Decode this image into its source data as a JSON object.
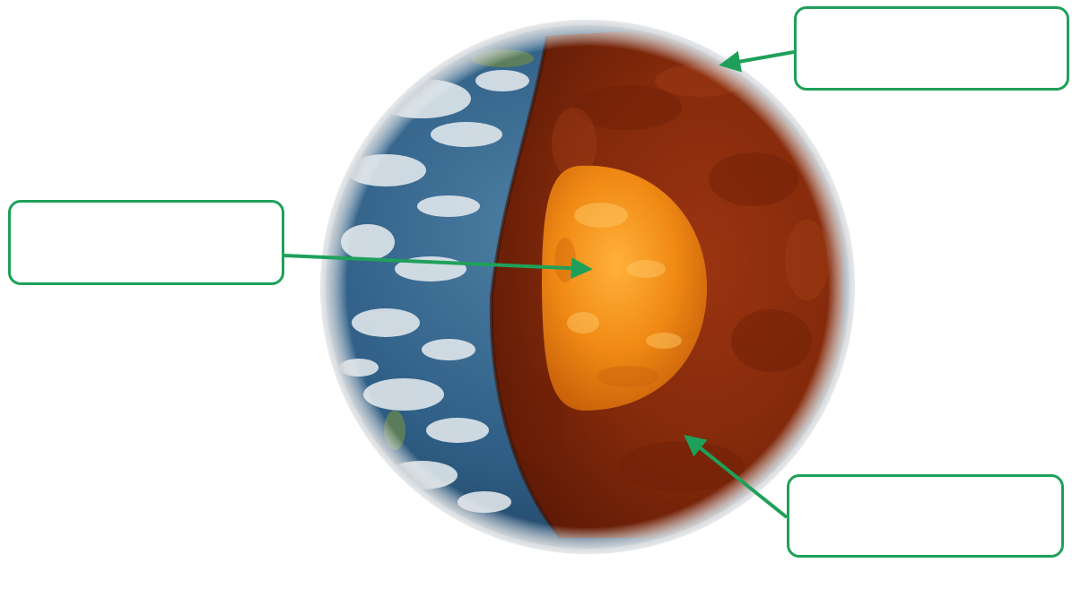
{
  "labels": {
    "top_right": "",
    "left": "",
    "bottom_right": ""
  },
  "colors": {
    "label_border": "#1fa05a",
    "arrow": "#1fa05a",
    "crust_ocean": "#2f5f86",
    "crust_clouds": "#e6ecef",
    "mantle": "#8a2a0c",
    "core": "#f08a14",
    "atmosphere_rim": "#d9dcde"
  },
  "layers": [
    "crust",
    "mantle",
    "core"
  ]
}
